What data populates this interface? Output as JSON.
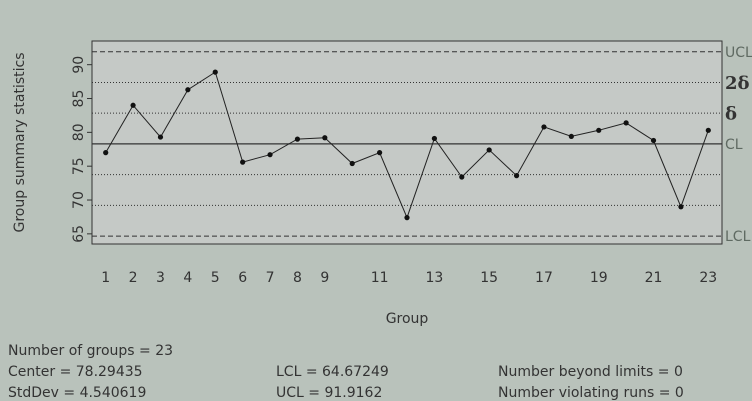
{
  "chart_data": {
    "type": "line",
    "title": "",
    "xlabel": "Group",
    "ylabel": "Group summary statistics",
    "ylim": [
      63.5,
      93.5
    ],
    "y_ticks": [
      65,
      70,
      75,
      80,
      85,
      90
    ],
    "x_ticks": [
      1,
      2,
      3,
      4,
      5,
      6,
      7,
      8,
      9,
      11,
      13,
      15,
      17,
      19,
      21,
      23
    ],
    "x": [
      1,
      2,
      3,
      4,
      5,
      6,
      7,
      8,
      9,
      10,
      11,
      12,
      13,
      14,
      15,
      16,
      17,
      18,
      19,
      20,
      21,
      22,
      23
    ],
    "series": [
      {
        "values": [
          77.0,
          84.0,
          79.3,
          86.3,
          88.9,
          75.6,
          76.7,
          79.0,
          79.2,
          75.4,
          77.0,
          67.4,
          79.1,
          73.4,
          77.4,
          73.6,
          80.8,
          79.4,
          80.3,
          81.4,
          78.8,
          69.0,
          80.3
        ]
      }
    ],
    "reference_lines": {
      "center": 78.29435,
      "ucl": 91.9162,
      "lcl": 64.67249,
      "plus_2sigma": 87.3756,
      "plus_1sigma": 82.835,
      "minus_1sigma": 73.7537,
      "minus_2sigma": 69.2131
    },
    "right_labels": {
      "ucl": "UCL",
      "two_sigma": "2δ",
      "one_sigma": "δ",
      "cl": "CL",
      "lcl": "LCL"
    },
    "grid": false
  },
  "stats": {
    "groups": "Number of groups = 23",
    "center": "Center = 78.29435",
    "stddev": "StdDev = 4.540619",
    "lcl": "LCL = 64.67249",
    "ucl": "UCL = 91.9162",
    "beyond": "Number beyond limits = 0",
    "violating": "Number violating runs = 0"
  },
  "colors": {
    "page_background": "#b9c2bb",
    "plot_background": "#c5c9c6",
    "axis_text": "#333333",
    "limit_label": "#5f6a62"
  }
}
